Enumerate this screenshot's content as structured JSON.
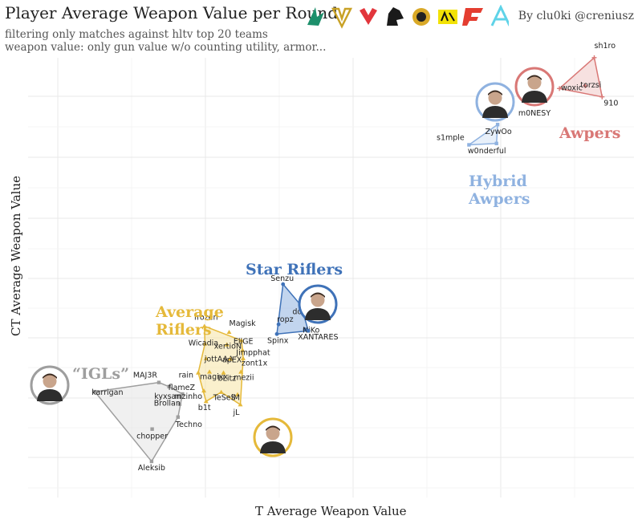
{
  "header": {
    "title": "Player Average Weapon Value per Round",
    "subtitle1": "filtering only matches against hltv top 20 teams",
    "subtitle2": "weapon value: only gun value w/o counting utility, armor...",
    "byline": "By clu0ki @creniusz"
  },
  "team_logos": [
    {
      "icon": "falcons-logo-icon",
      "color": "#1d8f6b"
    },
    {
      "icon": "vitality-logo-icon",
      "color": "#c9a227"
    },
    {
      "icon": "mouz-logo-icon",
      "color": "#e2363c"
    },
    {
      "icon": "spirit-logo-icon",
      "color": "#1a1a1a"
    },
    {
      "icon": "mongolz-logo-icon",
      "color": "#d9a928"
    },
    {
      "icon": "navi-logo-icon",
      "color": "#f2e205"
    },
    {
      "icon": "faze-logo-icon",
      "color": "#e43d30"
    },
    {
      "icon": "aurora-logo-icon",
      "color": "#5fd3e8"
    }
  ],
  "chart_data": {
    "type": "scatter",
    "title": "Player Average Weapon Value per Round",
    "xlabel": "T Average Weapon Value",
    "ylabel": "CT Average Weapon Value",
    "xlim": [
      0,
      100
    ],
    "ylim": [
      0,
      100
    ],
    "grid": true,
    "axis_tick_labels": "none",
    "groups": [
      {
        "name": "“IGLs”",
        "color": "#9e9e9e",
        "fill": "#e4e4e4",
        "marker": "square",
        "players": [
          {
            "name": "karrigan",
            "x": 6.6,
            "y": 20.5
          },
          {
            "name": "MAJ3R",
            "x": 18.0,
            "y": 22.5
          },
          {
            "name": "flameZ",
            "x": 19.8,
            "y": 21.6
          },
          {
            "name": "kyxsan",
            "x": 22.2,
            "y": 20.0
          },
          {
            "name": "Brollan",
            "x": 21.7,
            "y": 17.8
          },
          {
            "name": "Techno",
            "x": 21.4,
            "y": 15.0
          },
          {
            "name": "chopper",
            "x": 16.8,
            "y": 12.4
          },
          {
            "name": "Aleksib",
            "x": 16.7,
            "y": 5.4
          }
        ],
        "hull": [
          "karrigan",
          "MAJ3R",
          "flameZ",
          "kyxsan",
          "Techno",
          "Aleksib"
        ]
      },
      {
        "name": "Average\nRiflers",
        "color": "#e5b93a",
        "fill": "#f6e3a4",
        "marker": "triangle",
        "players": [
          {
            "name": "frozen",
            "x": 26.1,
            "y": 34.7
          },
          {
            "name": "Magisk",
            "x": 30.5,
            "y": 33.4
          },
          {
            "name": "Wicadia",
            "x": 26.2,
            "y": 30.9
          },
          {
            "name": "xertioN",
            "x": 30.1,
            "y": 30.7
          },
          {
            "name": "EliGE",
            "x": 32.7,
            "y": 31.6
          },
          {
            "name": "Jimpphat",
            "x": 32.9,
            "y": 29.5
          },
          {
            "name": "jottAAA",
            "x": 26.4,
            "y": 27.7
          },
          {
            "name": "apEX",
            "x": 30.7,
            "y": 27.6
          },
          {
            "name": "zont1x",
            "x": 33.0,
            "y": 27.7
          },
          {
            "name": "rain",
            "x": 25.0,
            "y": 24.6
          },
          {
            "name": "magixx",
            "x": 27.0,
            "y": 24.8
          },
          {
            "name": "bLitz",
            "x": 29.5,
            "y": 24.6
          },
          {
            "name": "mezii",
            "x": 32.6,
            "y": 24.8
          },
          {
            "name": "mzinho",
            "x": 26.0,
            "y": 20.7
          },
          {
            "name": "TeSeS",
            "x": 29.1,
            "y": 20.4
          },
          {
            "name": "b1t",
            "x": 26.4,
            "y": 18.4
          },
          {
            "name": "iM",
            "x": 32.0,
            "y": 19.9
          },
          {
            "name": "jL",
            "x": 32.5,
            "y": 17.7
          }
        ],
        "hull": [
          "frozen",
          "EliGE",
          "Jimpphat",
          "zont1x",
          "jL",
          "TeSeS",
          "b1t",
          "rain",
          "Wicadia"
        ]
      },
      {
        "name": "Star Riflers",
        "color": "#3f72b8",
        "fill": "#8fb2e0",
        "marker": "circle",
        "players": [
          {
            "name": "Senzu",
            "x": 40.1,
            "y": 43.8
          },
          {
            "name": "donk",
            "x": 43.3,
            "y": 39.2
          },
          {
            "name": "ropz",
            "x": 39.3,
            "y": 35.1
          },
          {
            "name": "NiKo",
            "x": 44.0,
            "y": 34.0
          },
          {
            "name": "Spinx",
            "x": 39.0,
            "y": 33.0
          },
          {
            "name": "XANTARES",
            "x": 44.6,
            "y": 33.7
          }
        ],
        "hull": [
          "Senzu",
          "donk",
          "XANTARES",
          "Spinx"
        ]
      },
      {
        "name": "Hybrid\nAwpers",
        "color": "#8fb2e0",
        "fill": "#d6e4f5",
        "marker": "square",
        "players": [
          {
            "name": "ZywOo",
            "x": 78.3,
            "y": 78.4
          },
          {
            "name": "s1mple",
            "x": 73.2,
            "y": 74.0
          },
          {
            "name": "w0nderful",
            "x": 78.1,
            "y": 74.3
          }
        ],
        "hull": [
          "ZywOo",
          "s1mple",
          "w0nderful"
        ]
      },
      {
        "name": "Awpers",
        "color": "#d97876",
        "fill": "#f1c8c6",
        "marker": "plus",
        "players": [
          {
            "name": "sh1ro",
            "x": 95.5,
            "y": 92.9
          },
          {
            "name": "woxic",
            "x": 89.3,
            "y": 86.2
          },
          {
            "name": "torzsi",
            "x": 93.9,
            "y": 86.8
          },
          {
            "name": "910",
            "x": 96.9,
            "y": 84.4
          }
        ],
        "hull": [
          "sh1ro",
          "woxic",
          "910"
        ]
      }
    ],
    "featured_players": [
      {
        "name": "m0NESY",
        "icon": "player-photo-icon",
        "color": "#d97876"
      },
      {
        "name": "ZywOo",
        "icon": "player-photo-icon",
        "color": "#8fb2e0"
      },
      {
        "name": "donk",
        "icon": "player-photo-icon",
        "color": "#3f72b8"
      },
      {
        "name": "jL",
        "icon": "player-photo-icon",
        "color": "#e5b93a"
      },
      {
        "name": "karrigan",
        "icon": "player-photo-icon",
        "color": "#9e9e9e"
      }
    ]
  }
}
